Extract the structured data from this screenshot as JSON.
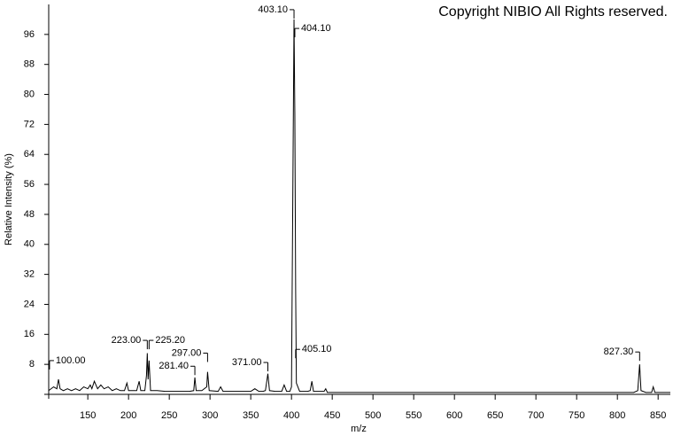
{
  "chart_data": {
    "type": "line",
    "title": "Copyright NIBIO All Rights reserved.",
    "xlabel": "m/z",
    "ylabel": "Relative Intensity (%)",
    "xlim": [
      102,
      865
    ],
    "ylim": [
      0,
      104
    ],
    "xticks": [
      150,
      200,
      250,
      300,
      350,
      400,
      450,
      500,
      550,
      600,
      650,
      700,
      750,
      800,
      850
    ],
    "yticks": [
      8,
      16,
      24,
      32,
      40,
      48,
      56,
      64,
      72,
      80,
      88,
      96
    ],
    "series": [
      {
        "color": "#000000",
        "x": [
          102,
          108,
          112,
          114,
          116,
          120,
          125,
          130,
          135,
          140,
          145,
          150,
          153,
          155,
          158,
          162,
          166,
          170,
          175,
          180,
          185,
          190,
          195,
          198,
          200,
          205,
          210,
          213,
          215,
          220,
          222,
          223,
          224,
          225.2,
          227,
          235,
          245,
          255,
          265,
          275,
          280,
          281.4,
          283,
          290,
          296,
          297,
          299,
          310,
          313,
          316,
          330,
          350,
          355,
          360,
          365,
          368,
          371,
          373,
          380,
          388,
          391,
          394,
          398,
          400,
          403.1,
          404.1,
          405.1,
          406,
          410,
          415,
          420,
          423,
          425,
          427,
          440,
          442,
          444,
          500,
          600,
          700,
          800,
          820,
          825,
          827.3,
          829,
          835,
          842,
          844,
          846,
          855,
          865
        ],
        "values": [
          1,
          2,
          1.5,
          4,
          1.5,
          1,
          1.5,
          1,
          1.5,
          1,
          2,
          1.5,
          2.5,
          1.5,
          3.5,
          1.5,
          2.5,
          1.5,
          2,
          1,
          1.5,
          1,
          1,
          3,
          1,
          1,
          1,
          3.5,
          1,
          1,
          5,
          11,
          4,
          9,
          1,
          1,
          0.8,
          0.8,
          0.8,
          0.8,
          1,
          4.5,
          1,
          1,
          2,
          6,
          1,
          0.8,
          2,
          0.8,
          0.8,
          0.8,
          1.5,
          0.8,
          0.8,
          1,
          5.5,
          1,
          0.8,
          0.8,
          2.5,
          0.8,
          0.8,
          2,
          100,
          75,
          28,
          3,
          0.8,
          0.8,
          0.8,
          1,
          3.5,
          0.8,
          0.8,
          1.5,
          0.5,
          0.5,
          0.5,
          0.5,
          0.5,
          0.5,
          1,
          8,
          1,
          0.5,
          0.5,
          2,
          0.5,
          0.5,
          0.5
        ]
      }
    ],
    "annotations": [
      {
        "text": "100.00",
        "x": 103,
        "y": 9,
        "side": "right"
      },
      {
        "text": "223.00",
        "x": 223,
        "y": 14.4,
        "side": "left"
      },
      {
        "text": "225.20",
        "x": 225.2,
        "y": 14.4,
        "side": "right"
      },
      {
        "text": "281.40",
        "x": 281.4,
        "y": 7.5,
        "side": "left"
      },
      {
        "text": "297.00",
        "x": 297,
        "y": 11,
        "side": "left"
      },
      {
        "text": "371.00",
        "x": 371,
        "y": 8.5,
        "side": "left"
      },
      {
        "text": "403.10",
        "x": 403.1,
        "y": 102.6,
        "side": "left"
      },
      {
        "text": "404.10",
        "x": 404.1,
        "y": 97.6,
        "side": "right"
      },
      {
        "text": "405.10",
        "x": 405.1,
        "y": 12,
        "side": "right"
      },
      {
        "text": "827.30",
        "x": 827.3,
        "y": 11.3,
        "side": "left"
      }
    ]
  }
}
